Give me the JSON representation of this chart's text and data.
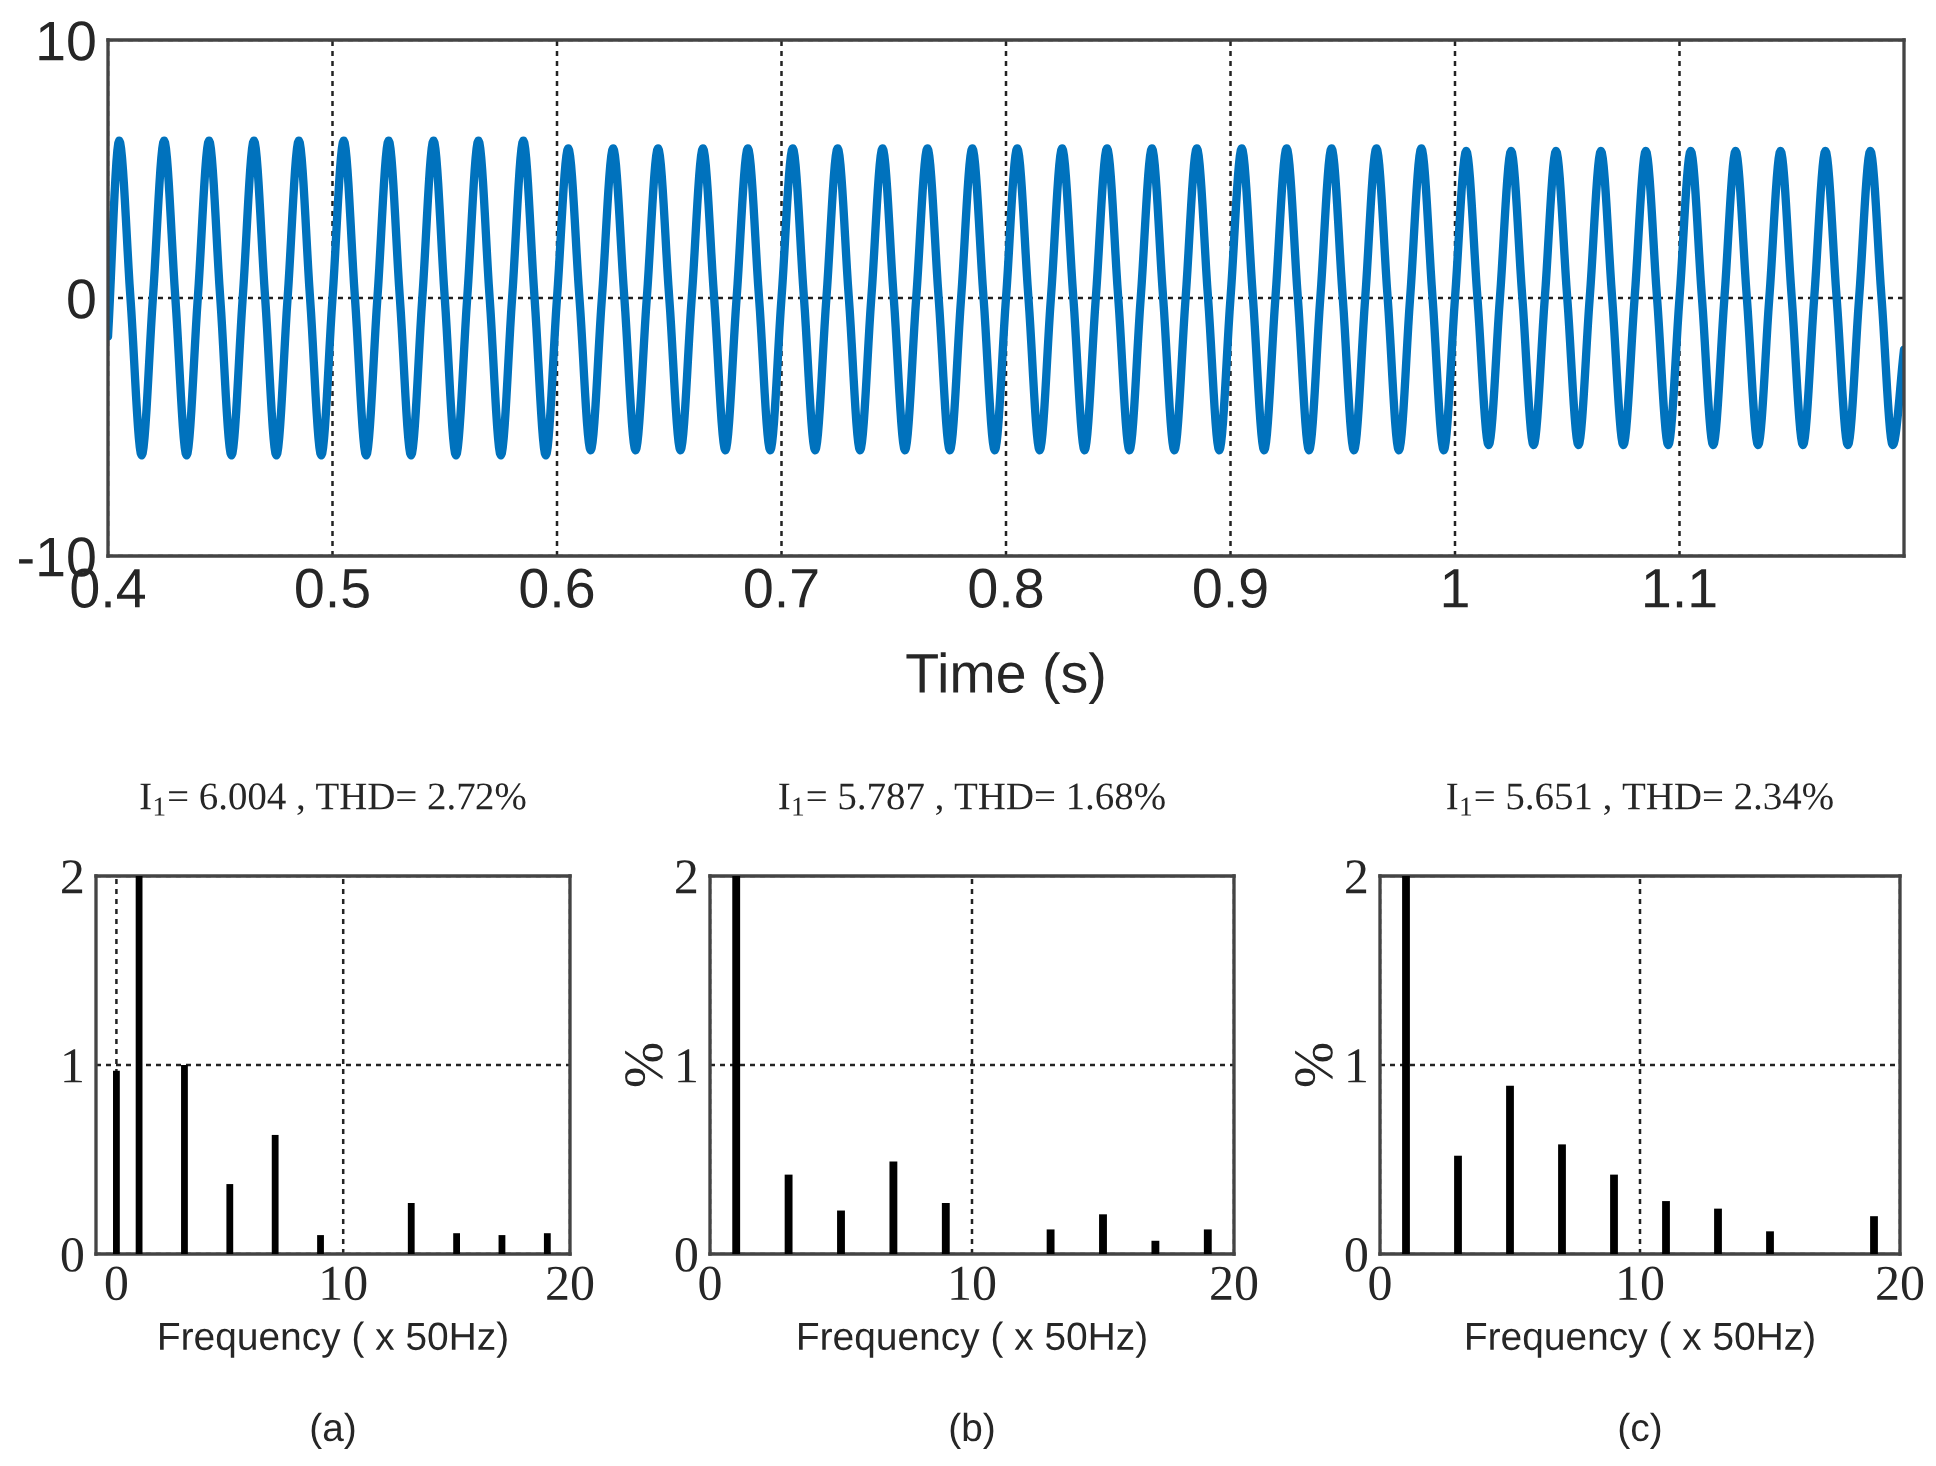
{
  "chart_data": [
    {
      "type": "line",
      "xlabel": "Time (s)",
      "xlim": [
        0.4,
        1.2
      ],
      "ylim": [
        -10,
        10
      ],
      "xticks": [
        0.4,
        0.5,
        0.6,
        0.7,
        0.8,
        0.9,
        1,
        1.1
      ],
      "yticks": [
        -10,
        0,
        10
      ],
      "grid": true,
      "marker": "none",
      "line_style": "solid",
      "series": [
        {
          "color": "#0072bd",
          "x": [
            0.4,
            0.405,
            0.41,
            0.415,
            0.42,
            0.425,
            0.43,
            0.435,
            0.44,
            0.445,
            0.45,
            0.455,
            0.46,
            0.465,
            0.47,
            0.475,
            0.48,
            0.485,
            0.49,
            0.495,
            0.5,
            0.505,
            0.51,
            0.515,
            0.52,
            0.525,
            0.53,
            0.535,
            0.54,
            0.545,
            0.55,
            0.555,
            0.56,
            0.565,
            0.57,
            0.575,
            0.58,
            0.585,
            0.59,
            0.595,
            0.6,
            0.605,
            0.61,
            0.615,
            0.62,
            0.625,
            0.63,
            0.635,
            0.64,
            0.645,
            0.65,
            0.655,
            0.66,
            0.665,
            0.67,
            0.675,
            0.68,
            0.685,
            0.69,
            0.695,
            0.7,
            0.705,
            0.71,
            0.715,
            0.72,
            0.725,
            0.73,
            0.735,
            0.74,
            0.745,
            0.75,
            0.755,
            0.76,
            0.765,
            0.77,
            0.775,
            0.78,
            0.785,
            0.79,
            0.795,
            0.8,
            0.805,
            0.81,
            0.815,
            0.82,
            0.825,
            0.83,
            0.835,
            0.84,
            0.845,
            0.85,
            0.855,
            0.86,
            0.865,
            0.87,
            0.875,
            0.88,
            0.885,
            0.89,
            0.895,
            0.9,
            0.905,
            0.91,
            0.915,
            0.92,
            0.925,
            0.93,
            0.935,
            0.94,
            0.945,
            0.95,
            0.955,
            0.96,
            0.965,
            0.97,
            0.975,
            0.98,
            0.985,
            0.99,
            0.995,
            1.0,
            1.005,
            1.01,
            1.015,
            1.02,
            1.025,
            1.03,
            1.035,
            1.04,
            1.045,
            1.05,
            1.055,
            1.06,
            1.065,
            1.07,
            1.075,
            1.08,
            1.085,
            1.09,
            1.095,
            1.1,
            1.105,
            1.11,
            1.115,
            1.12,
            1.125,
            1.13,
            1.135,
            1.14,
            1.145,
            1.15,
            1.155,
            1.16,
            1.165,
            1.17,
            1.175,
            1.18,
            1.185,
            1.19,
            1.195,
            1.2
          ],
          "values": [
            -1.5,
            6.1,
            0,
            -6.1,
            0,
            6.1,
            0,
            -6.1,
            0,
            6.1,
            0,
            -6.1,
            0,
            6.1,
            0,
            -6.1,
            0,
            6.1,
            0,
            -6.1,
            0,
            6.1,
            0,
            -6.1,
            0,
            6.1,
            0,
            -6.1,
            0,
            6.1,
            0,
            -6.1,
            0,
            6.1,
            0,
            -6.1,
            0,
            6.1,
            0,
            -6.1,
            0,
            5.8,
            0,
            -5.9,
            0,
            5.8,
            0,
            -5.9,
            0,
            5.8,
            0,
            -5.9,
            0,
            5.8,
            0,
            -5.9,
            0,
            5.8,
            0,
            -5.9,
            0,
            5.8,
            0,
            -5.9,
            0,
            5.8,
            0,
            -5.9,
            0,
            5.8,
            0,
            -5.9,
            0,
            5.8,
            0,
            -5.9,
            0,
            5.8,
            0,
            -5.9,
            0,
            5.8,
            0,
            -5.9,
            0,
            5.8,
            0,
            -5.9,
            0,
            5.8,
            0,
            -5.9,
            0,
            5.8,
            0,
            -5.9,
            0,
            5.8,
            0,
            -5.9,
            0,
            5.8,
            0,
            -5.9,
            0,
            5.8,
            0,
            -5.9,
            0,
            5.8,
            0,
            -5.9,
            0,
            5.8,
            0,
            -5.9,
            0,
            5.8,
            0,
            -5.9,
            0,
            5.7,
            0,
            -5.7,
            0,
            5.7,
            0,
            -5.7,
            0,
            5.7,
            0,
            -5.7,
            0,
            5.7,
            0,
            -5.7,
            0,
            5.7,
            0,
            -5.7,
            0,
            5.7,
            0,
            -5.7,
            0,
            5.7,
            0,
            -5.7,
            0,
            5.7,
            0,
            -5.7,
            0,
            5.7,
            0,
            -5.7,
            0,
            5.7,
            0,
            -5.7,
            -2
          ]
        }
      ]
    },
    {
      "type": "bar",
      "title": "I$_{1}$= 6.004 , THD= 2.72%",
      "xlabel": "Frequency ( x 50Hz)",
      "annotations": [
        "(a)"
      ],
      "xlim": [
        -0.9,
        20
      ],
      "ylim": [
        0,
        2
      ],
      "xticks": [
        0,
        10,
        20
      ],
      "yticks": [
        0,
        1,
        2
      ],
      "grid": true,
      "series": [
        {
          "color": "#000000",
          "x": [
            0,
            1,
            3,
            5,
            7,
            9,
            13,
            15,
            17,
            19
          ],
          "values": [
            0.97,
            2,
            1.0,
            0.37,
            0.63,
            0.1,
            0.27,
            0.11,
            0.1,
            0.11
          ]
        }
      ]
    },
    {
      "type": "bar",
      "title": "I$_{1}$= 5.787 , THD= 1.68%",
      "xlabel": "Frequency ( x 50Hz)",
      "ylabel": "%",
      "annotations": [
        "(b)"
      ],
      "xlim": [
        0,
        20
      ],
      "ylim": [
        0,
        2
      ],
      "xticks": [
        0,
        10,
        20
      ],
      "yticks": [
        0,
        1,
        2
      ],
      "grid": true,
      "series": [
        {
          "color": "#000000",
          "x": [
            1,
            3,
            5,
            7,
            9,
            13,
            15,
            17,
            19
          ],
          "values": [
            2,
            0.42,
            0.23,
            0.49,
            0.27,
            0.13,
            0.21,
            0.07,
            0.13
          ]
        }
      ]
    },
    {
      "type": "bar",
      "title": "I$_{1}$= 5.651 , THD= 2.34%",
      "xlabel": "Frequency ( x 50Hz)",
      "ylabel": "%",
      "annotations": [
        "(c)"
      ],
      "xlim": [
        0,
        20
      ],
      "ylim": [
        0,
        2
      ],
      "xticks": [
        0,
        10,
        20
      ],
      "yticks": [
        0,
        1,
        2
      ],
      "grid": true,
      "series": [
        {
          "color": "#000000",
          "x": [
            1,
            3,
            5,
            7,
            9,
            11,
            13,
            15,
            19
          ],
          "values": [
            2,
            0.52,
            0.89,
            0.58,
            0.42,
            0.28,
            0.24,
            0.12,
            0.2
          ]
        }
      ]
    }
  ]
}
